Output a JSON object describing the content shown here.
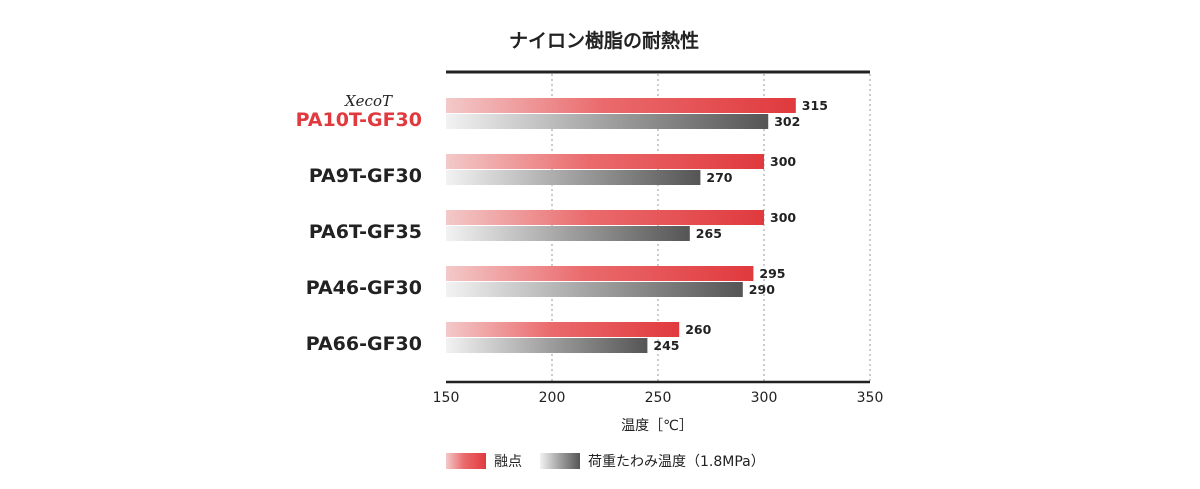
{
  "chart_data": {
    "type": "bar",
    "orientation": "horizontal",
    "title": "ナイロン樹脂の耐熱性",
    "brand": "XecoT",
    "categories": [
      "PA10T-GF30",
      "PA9T-GF30",
      "PA6T-GF35",
      "PA46-GF30",
      "PA66-GF30"
    ],
    "highlight_category": "PA10T-GF30",
    "series": [
      {
        "name": "融点",
        "values": [
          315,
          300,
          300,
          295,
          260
        ],
        "color": "#e03a3e"
      },
      {
        "name": "荷重たわみ温度（1.8MPa）",
        "values": [
          302,
          270,
          265,
          290,
          245
        ],
        "color": "#555555"
      }
    ],
    "xlabel": "温度［℃］",
    "xlim": [
      150,
      350
    ],
    "xticks": [
      150,
      200,
      250,
      300,
      350
    ],
    "grid": "vertical dotted",
    "legend_position": "bottom"
  }
}
